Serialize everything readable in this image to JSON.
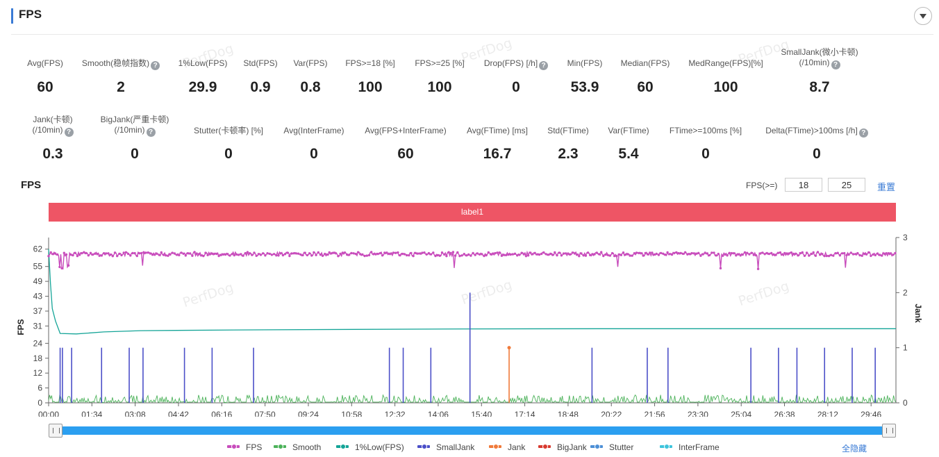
{
  "header": {
    "title": "FPS"
  },
  "stats_row1": [
    {
      "label": "Avg(FPS)",
      "value": "60",
      "help": false
    },
    {
      "label": "Smooth(稳帧指数)",
      "value": "2",
      "help": true
    },
    {
      "label": "1%Low(FPS)",
      "value": "29.9",
      "help": false
    },
    {
      "label": "Std(FPS)",
      "value": "0.9",
      "help": false
    },
    {
      "label": "Var(FPS)",
      "value": "0.8",
      "help": false
    },
    {
      "label": "FPS>=18 [%]",
      "value": "100",
      "help": false
    },
    {
      "label": "FPS>=25 [%]",
      "value": "100",
      "help": false
    },
    {
      "label": "Drop(FPS) [/h]",
      "value": "0",
      "help": true
    },
    {
      "label": "Min(FPS)",
      "value": "53.9",
      "help": false
    },
    {
      "label": "Median(FPS)",
      "value": "60",
      "help": false
    },
    {
      "label": "MedRange(FPS)[%]",
      "value": "100",
      "help": false
    },
    {
      "label": "SmallJank(微小卡顿)",
      "label2": "(/10min)",
      "value": "8.7",
      "help": true
    }
  ],
  "stats_row2": [
    {
      "label": "Jank(卡顿)",
      "label2": "(/10min)",
      "value": "0.3",
      "help": true
    },
    {
      "label": "BigJank(严重卡顿)",
      "label2": "(/10min)",
      "value": "0",
      "help": true
    },
    {
      "label": "Stutter(卡顿率) [%]",
      "value": "0",
      "help": false
    },
    {
      "label": "Avg(InterFrame)",
      "value": "0",
      "help": false
    },
    {
      "label": "Avg(FPS+InterFrame)",
      "value": "60",
      "help": false
    },
    {
      "label": "Avg(FTime) [ms]",
      "value": "16.7",
      "help": false
    },
    {
      "label": "Std(FTime)",
      "value": "2.3",
      "help": false
    },
    {
      "label": "Var(FTime)",
      "value": "5.4",
      "help": false
    },
    {
      "label": "FTime>=100ms [%]",
      "value": "0",
      "help": false
    },
    {
      "label": "Delta(FTime)>100ms [/h]",
      "value": "0",
      "help": true
    }
  ],
  "help_glyph": "?",
  "watermark": "PerfDog",
  "chart_section": {
    "title": "FPS",
    "filter_label": "FPS(>=)",
    "filter_values": [
      "18",
      "25"
    ],
    "reset_label": "重置",
    "label_bar": "label1",
    "hide_all_label": "全隐藏"
  },
  "colors": {
    "fps": "#c84dbc",
    "smooth": "#4cb25a",
    "low1": "#14a497",
    "smalljank": "#4b4fc8",
    "jank": "#f07a3a",
    "bigjank": "#d83a30",
    "stutter": "#4d8fd6",
    "interframe": "#3ec4dc",
    "labelbar": "#ee5565",
    "accent": "#3a7bd5"
  },
  "chart_data": {
    "type": "line",
    "xlabel": "",
    "ylabel": "FPS",
    "y2label": "Jank",
    "x_ticks": [
      "00:00",
      "01:34",
      "03:08",
      "04:42",
      "06:16",
      "07:50",
      "09:24",
      "10:58",
      "12:32",
      "14:06",
      "15:40",
      "17:14",
      "18:48",
      "20:22",
      "21:56",
      "23:30",
      "25:04",
      "26:38",
      "28:12",
      "29:46"
    ],
    "x_range_seconds": [
      0,
      1840
    ],
    "y_ticks": [
      "0",
      "6",
      "12",
      "18",
      "24",
      "31",
      "37",
      "43",
      "49",
      "55",
      "62"
    ],
    "ylim": [
      0,
      65
    ],
    "y2_ticks": [
      "0",
      "1",
      "2",
      "3"
    ],
    "y2lim": [
      0,
      3
    ],
    "grid": false,
    "legend_position": "bottom",
    "series": [
      {
        "name": "FPS",
        "key": "fps",
        "axis": "left",
        "baseline": 60,
        "description_values": {
          "min": 53.9,
          "median": 60,
          "dips_seconds": [
            25,
            30,
            42,
            205,
            880,
            1235,
            1460,
            1540,
            1730
          ]
        }
      },
      {
        "name": "Smooth",
        "key": "smooth",
        "axis": "left",
        "baseline_range": [
          0,
          3
        ]
      },
      {
        "name": "1%Low(FPS)",
        "key": "low1",
        "axis": "left",
        "points": [
          [
            0,
            62
          ],
          [
            4,
            48
          ],
          [
            8,
            38
          ],
          [
            15,
            33
          ],
          [
            25,
            28
          ],
          [
            60,
            27.8
          ],
          [
            120,
            28.6
          ],
          [
            200,
            29.1
          ],
          [
            400,
            29.4
          ],
          [
            900,
            29.8
          ],
          [
            1200,
            29.9
          ],
          [
            1840,
            29.9
          ]
        ]
      },
      {
        "name": "SmallJank",
        "key": "smalljank",
        "axis": "right",
        "spikes_seconds": [
          25,
          30,
          50,
          115,
          175,
          205,
          295,
          355,
          445,
          740,
          770,
          830,
          915,
          1180,
          1300,
          1345,
          1525,
          1585,
          1625,
          1685,
          1745,
          1795
        ],
        "spike_values": {
          "915": 2
        }
      },
      {
        "name": "Jank",
        "key": "jank",
        "axis": "right",
        "spikes_seconds": [
          1000
        ],
        "spike_values": {
          "1000": 1
        }
      },
      {
        "name": "BigJank",
        "key": "bigjank",
        "axis": "right",
        "spikes_seconds": []
      },
      {
        "name": "Stutter",
        "key": "stutter",
        "axis": "right",
        "spikes_seconds": []
      },
      {
        "name": "InterFrame",
        "key": "interframe",
        "axis": "left",
        "spikes_seconds": []
      }
    ]
  }
}
